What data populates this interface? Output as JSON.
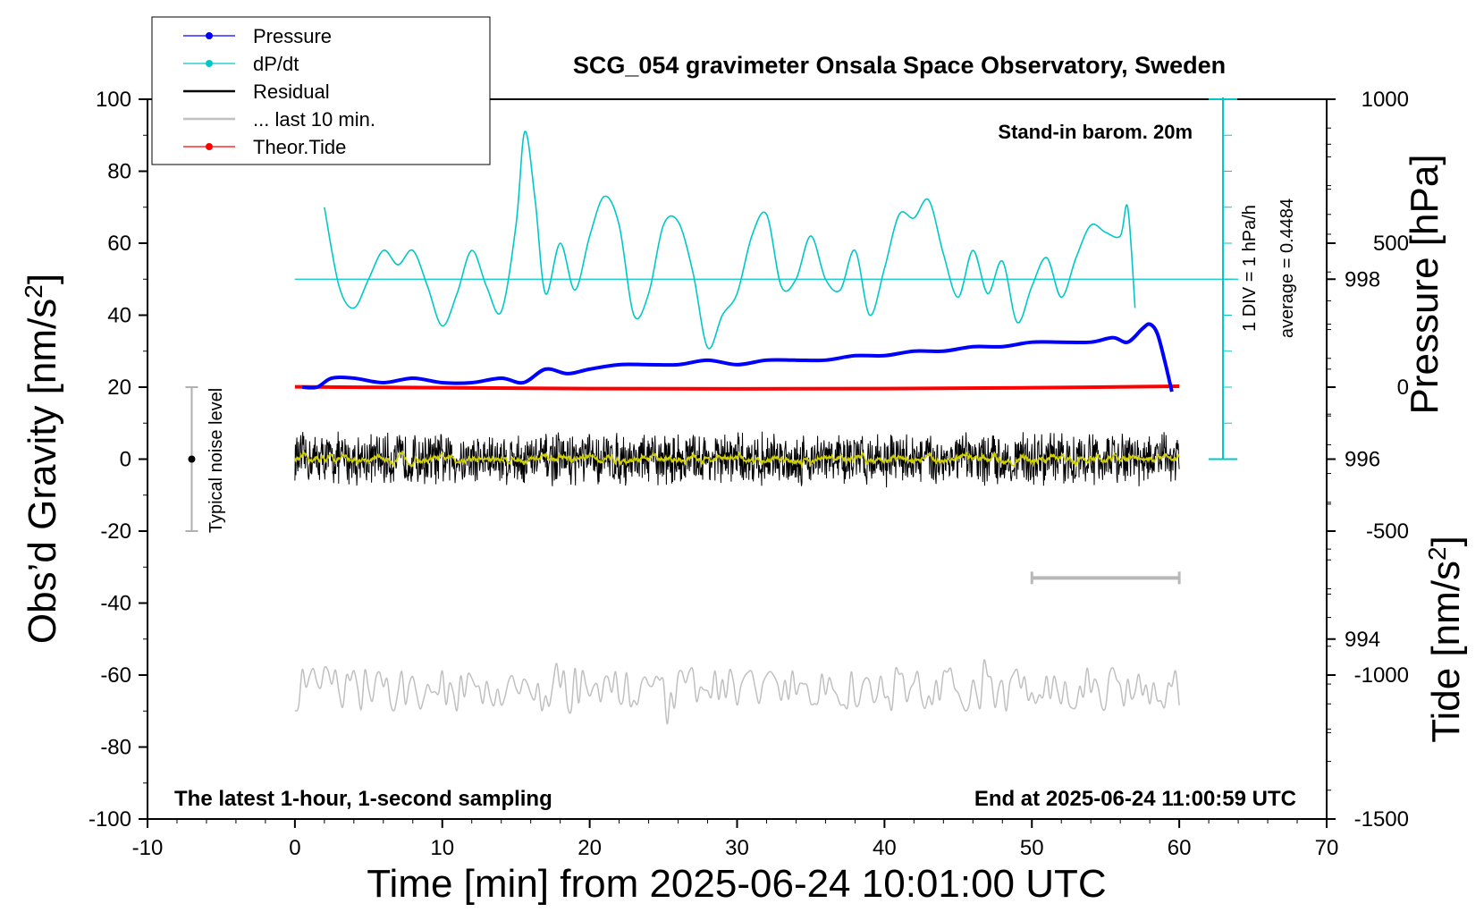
{
  "chart_data": {
    "type": "line",
    "title": "SCG_054 gravimeter Onsala Space Observatory, Sweden",
    "xlabel": "Time [min] from 2025-06-24 10:01:00 UTC",
    "ylabel_left_text": "Obs’d Gravity [nm/s",
    "ylabel_left_sup": "2",
    "ylabel_left_close": "]",
    "ylabel_right_pressure": "Pressure [hPa]",
    "ylabel_right_tide_text": "Tide [nm/s",
    "ylabel_right_tide_sup": "2",
    "ylabel_right_tide_close": "]",
    "xlim": [
      -10,
      70
    ],
    "ylim": [
      -100,
      100
    ],
    "pressure_ylim": [
      992,
      1000
    ],
    "tide_ylim": [
      -1500,
      1000
    ],
    "x_ticks": [
      "-10",
      "0",
      "10",
      "20",
      "30",
      "40",
      "50",
      "60",
      "70"
    ],
    "y_ticks": [
      "100",
      "80",
      "60",
      "40",
      "20",
      "0",
      "-20",
      "-40",
      "-60",
      "-80",
      "-100"
    ],
    "pressure_ticks": [
      "998",
      "996",
      "994"
    ],
    "tide_ticks": [
      "1000",
      "500",
      "0",
      "-500",
      "-1000",
      "-1500"
    ],
    "grid": false,
    "legend_position": "top-left",
    "legend": [
      {
        "label": "Pressure",
        "color": "#0000ff",
        "marker": true
      },
      {
        "label": "dP/dt",
        "color": "#00c8c8",
        "marker": true
      },
      {
        "label": "Residual",
        "color": "#000000",
        "marker": false
      },
      {
        "label": "... last 10 min.",
        "color": "#c0c0c0",
        "marker": false
      },
      {
        "label": "Theor.Tide",
        "color": "#ff0000",
        "marker": true
      }
    ],
    "annotations": {
      "barometer": "Stand-in barom. 20m",
      "sampling": "The latest 1-hour, 1-second sampling",
      "end_time": "End at 2025-06-24 11:00:59 UTC",
      "div_label": "1 DIV = 1 hPa/h",
      "average_label": "average = 0.4484",
      "noise_label": "Typical noise level"
    },
    "noise_bar": {
      "x": -7,
      "y": 0,
      "low": -20,
      "high": 20
    },
    "last10_bar": {
      "x_start": 50,
      "x_end": 60
    },
    "series": [
      {
        "name": "Pressure",
        "color": "#0000ff",
        "x": [
          0.5,
          1.5,
          2.5,
          4,
          6,
          8,
          10,
          12,
          14,
          15.5,
          17,
          18.5,
          20,
          22,
          24,
          26,
          28,
          30,
          32,
          34,
          36,
          38,
          40,
          42,
          44,
          46,
          48,
          50,
          52,
          54,
          55.5,
          56.5,
          57.5,
          58,
          58.5,
          59,
          59.5
        ],
        "y": [
          996.8,
          996.8,
          996.9,
          996.9,
          996.85,
          996.9,
          996.85,
          996.85,
          996.9,
          996.85,
          997.0,
          996.95,
          997.0,
          997.05,
          997.05,
          997.05,
          997.1,
          997.05,
          997.1,
          997.1,
          997.1,
          997.15,
          997.15,
          997.2,
          997.2,
          997.25,
          997.25,
          997.3,
          997.3,
          997.3,
          997.35,
          997.3,
          997.45,
          997.5,
          997.4,
          997.1,
          996.75
        ]
      },
      {
        "name": "dP/dt",
        "color": "#00c8c8",
        "x": [
          2,
          3,
          4,
          5,
          6,
          7,
          8,
          9,
          10,
          11,
          12,
          13,
          14,
          15,
          15.6,
          16.3,
          17,
          18,
          19,
          20,
          21,
          22,
          23,
          24,
          25,
          26,
          27,
          28,
          29,
          30,
          31,
          32,
          33,
          34,
          35,
          36,
          37,
          38,
          39,
          40,
          41,
          42,
          43,
          44,
          45,
          46,
          47,
          48,
          49,
          50,
          51,
          52,
          53,
          54,
          55,
          56,
          56.5,
          57
        ],
        "y": [
          70,
          48,
          42,
          50,
          58,
          54,
          58,
          48,
          37,
          46,
          58,
          48,
          41,
          65,
          91,
          72,
          46,
          60,
          47,
          62,
          73,
          65,
          40,
          46,
          65,
          66,
          52,
          31,
          40,
          46,
          62,
          68,
          48,
          50,
          62,
          50,
          47,
          58,
          40,
          53,
          68,
          67,
          72,
          57,
          45,
          58,
          46,
          55,
          38,
          48,
          56,
          45,
          56,
          65,
          63,
          62,
          70,
          42
        ]
      },
      {
        "name": "Residual",
        "color": "#000000",
        "x_range": [
          0,
          60
        ],
        "mean": 0,
        "amplitude": 8
      },
      {
        "name": "... last 10 min.",
        "color": "#c0c0c0",
        "x_range": [
          0,
          60
        ],
        "mean": -64,
        "amplitude": 6
      },
      {
        "name": "Theor.Tide",
        "color": "#ff0000",
        "x": [
          0,
          10,
          20,
          30,
          40,
          50,
          60
        ],
        "y": [
          1,
          -2,
          -5,
          -6,
          -5,
          -2,
          3
        ]
      }
    ],
    "reference_lines": [
      {
        "y": 50,
        "color": "#00c8c8",
        "x_range": [
          0,
          64
        ]
      }
    ]
  }
}
